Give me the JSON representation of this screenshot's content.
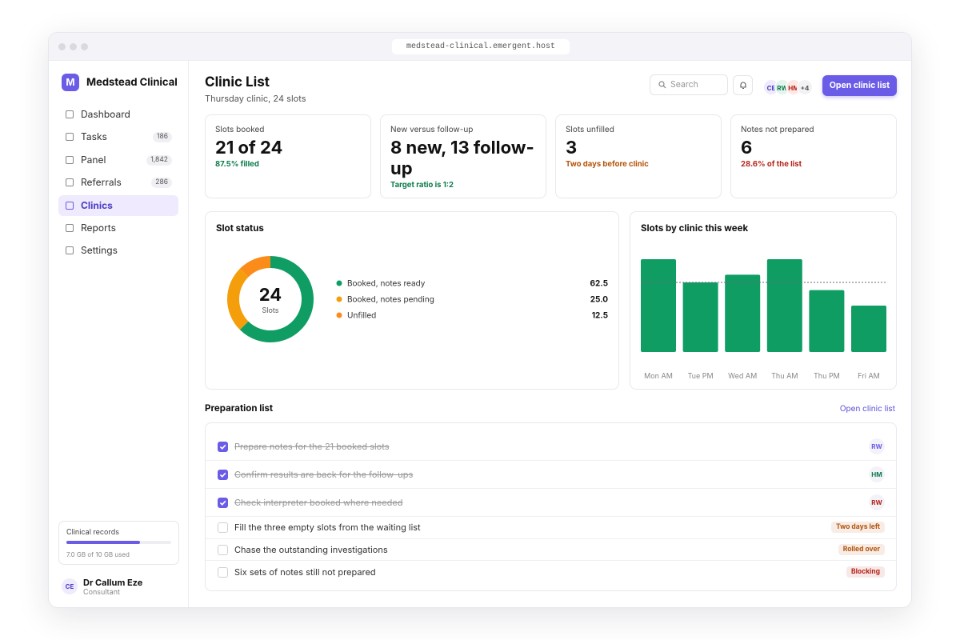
{
  "browser": {
    "url": "medstead-clinical.emergent.host"
  },
  "sidebar": {
    "brand_initial": "M",
    "brand": "Medstead Clinical",
    "nav": [
      {
        "label": "Dashboard"
      },
      {
        "label": "Tasks",
        "badge": "186"
      },
      {
        "label": "Panel",
        "badge": "1,842"
      },
      {
        "label": "Referrals",
        "badge": "286"
      },
      {
        "label": "Clinics",
        "active": true
      },
      {
        "label": "Reports"
      },
      {
        "label": "Settings"
      }
    ],
    "storage": {
      "label": "Clinical records",
      "used": 7,
      "total": 10,
      "text": "7.0 GB of 10 GB used"
    },
    "user": {
      "initials": "CE",
      "name": "Dr Callum Eze",
      "role": "Consultant"
    }
  },
  "header": {
    "title": "Clinic List",
    "subtitle": "Thursday clinic, 24 slots",
    "search": "Search",
    "avatars": [
      "CE",
      "RW",
      "HM"
    ],
    "more": "+4",
    "button": "Open clinic list"
  },
  "stats": [
    {
      "label": "Slots booked",
      "value": "21 of 24",
      "note": "87.5% filled",
      "note_color": "#0b7a4b"
    },
    {
      "label": "New versus follow-up",
      "value": "8 new, 13 follow-up",
      "note": "Target ratio is 1:2",
      "note_color": "#0b7a4b"
    },
    {
      "label": "Slots unfilled",
      "value": "3",
      "note": "Two days before clinic",
      "note_color": "#b45309"
    },
    {
      "label": "Notes not prepared",
      "value": "6",
      "note": "28.6% of the list",
      "note_color": "#b42318"
    }
  ],
  "chart_data": [
    {
      "type": "donut",
      "title": "Slot status",
      "center_value": "24",
      "center_label": "Slots",
      "categories": [
        "Booked, notes ready",
        "Booked, notes pending",
        "Unfilled"
      ],
      "values": [
        62.5,
        25.0,
        12.5
      ],
      "value_labels": [
        "62.5",
        "25.0",
        "12.5"
      ],
      "colors": [
        "#0f9d63",
        "#f59e0b",
        "#fb8c1a"
      ]
    },
    {
      "type": "bar",
      "title": "Slots by clinic this week",
      "categories": [
        "Mon AM",
        "Tue PM",
        "Wed AM",
        "Thu AM",
        "Thu PM",
        "Fri AM"
      ],
      "values": [
        6,
        4.5,
        5,
        6,
        4,
        3
      ],
      "color": "#0f9d63",
      "ylim": [
        0,
        6
      ],
      "target": 4.5
    }
  ],
  "prep": {
    "title": "Preparation list",
    "link": "Open clinic list",
    "items": [
      {
        "text": "Prepare notes for the 21 booked slots",
        "done": true,
        "assignee": "RW",
        "assignee_color": "#6b5ce7"
      },
      {
        "text": "Confirm results are back for the follow-ups",
        "done": true,
        "assignee": "HM",
        "assignee_color": "#0b7a4b"
      },
      {
        "text": "Check interpreter booked where needed",
        "done": true,
        "assignee": "RW",
        "assignee_color": "#b42318"
      },
      {
        "text": "Fill the three empty slots from the waiting list",
        "done": false,
        "tag": "Two days left",
        "tag_color": "#b45309"
      },
      {
        "text": "Chase the outstanding investigations",
        "done": false,
        "tag": "Rolled over",
        "tag_color": "#b45309"
      },
      {
        "text": "Six sets of notes still not prepared",
        "done": false,
        "tag": "Blocking",
        "tag_color": "#b42318"
      }
    ]
  }
}
